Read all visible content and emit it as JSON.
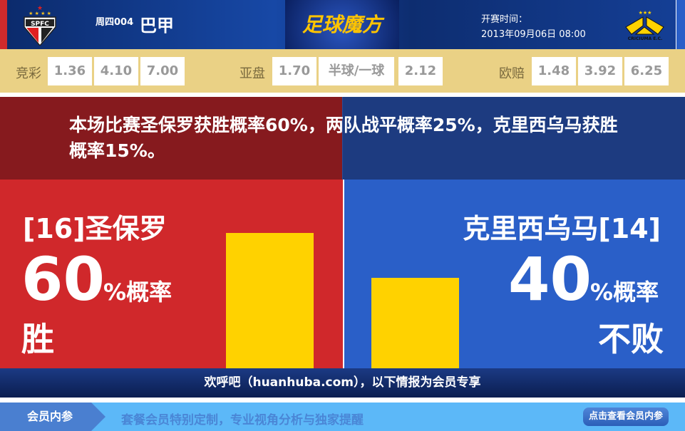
{
  "header": {
    "home_logo_text": "SPFC",
    "away_logo_text": "CRICIUMA E.C.",
    "match_code": "周四004",
    "league": "巴甲",
    "brand": "足球魔方",
    "kickoff_label": "开赛时间：",
    "kickoff_time": "2013年09月06日 08:00"
  },
  "odds": {
    "jingcai": {
      "label": "竞彩",
      "values": [
        "1.36",
        "4.10",
        "7.00"
      ]
    },
    "yapan": {
      "label": "亚盘",
      "values": [
        "1.70",
        "半球/一球",
        "2.12"
      ]
    },
    "ouzhou": {
      "label": "欧赔",
      "values": [
        "1.48",
        "3.92",
        "6.25"
      ]
    }
  },
  "summary": "本场比赛圣保罗获胜概率60%，两队战平概率25%，克里西乌马获胜概率15%。",
  "home": {
    "team": "[16]圣保罗",
    "percent": "60",
    "percent_label": "%概率",
    "result": "胜",
    "bar_value": 60
  },
  "away": {
    "team": "克里西乌马[14]",
    "percent": "40",
    "percent_label": "%概率",
    "result": "不败",
    "bar_value": 40
  },
  "colors": {
    "home": "#d0282b",
    "away": "#2a5fc8",
    "bar": "#ffd200"
  },
  "welcome": "欢呼吧（huanhuba.com），以下情报为会员专享",
  "vip": {
    "tab": "会员内参",
    "text": "套餐会员特别定制，专业视角分析与独家提醒",
    "button": "点击查看会员内参"
  }
}
